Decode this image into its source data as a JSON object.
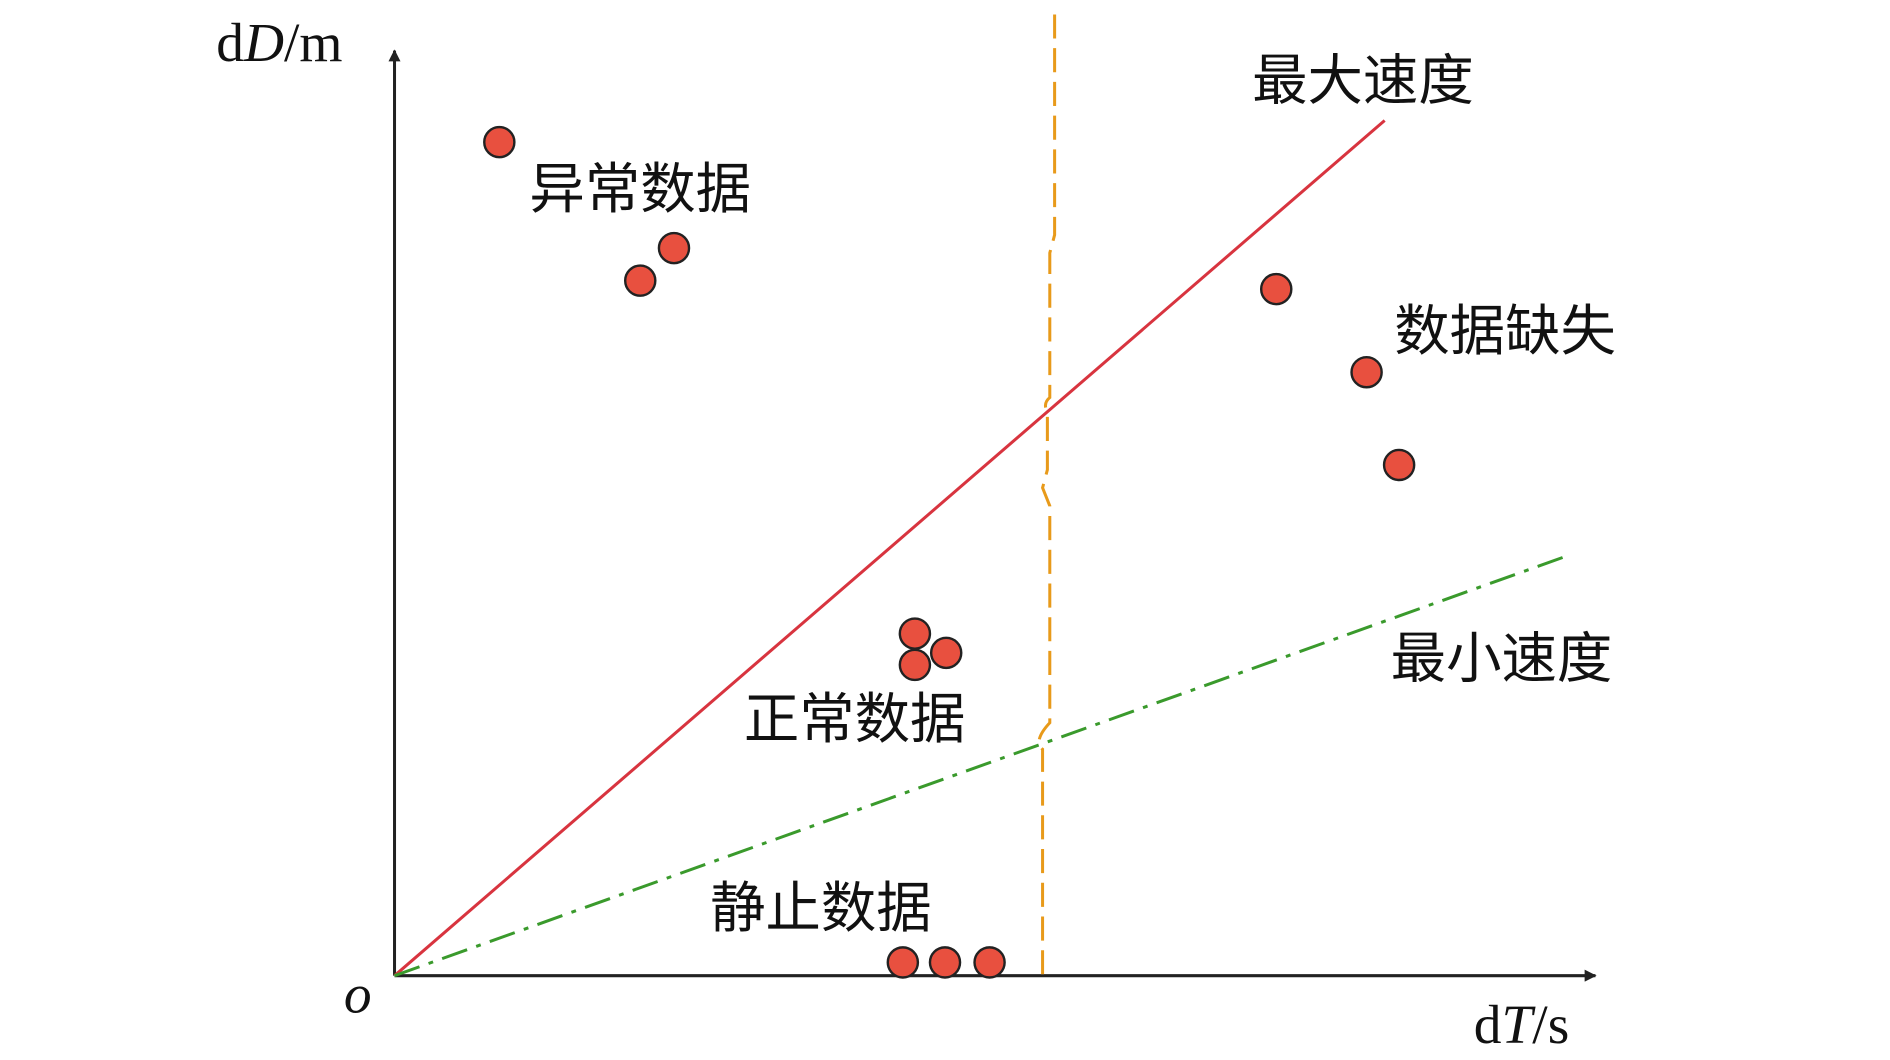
{
  "axes": {
    "y_label": [
      "d",
      "D",
      "/m"
    ],
    "x_label": [
      "d",
      "T",
      "/s"
    ],
    "origin": "o"
  },
  "labels": {
    "abnormal": "异常数据",
    "max_speed": "最大速度",
    "missing": "数据缺失",
    "min_speed": "最小速度",
    "normal": "正常数据",
    "static": "静止数据"
  }
}
